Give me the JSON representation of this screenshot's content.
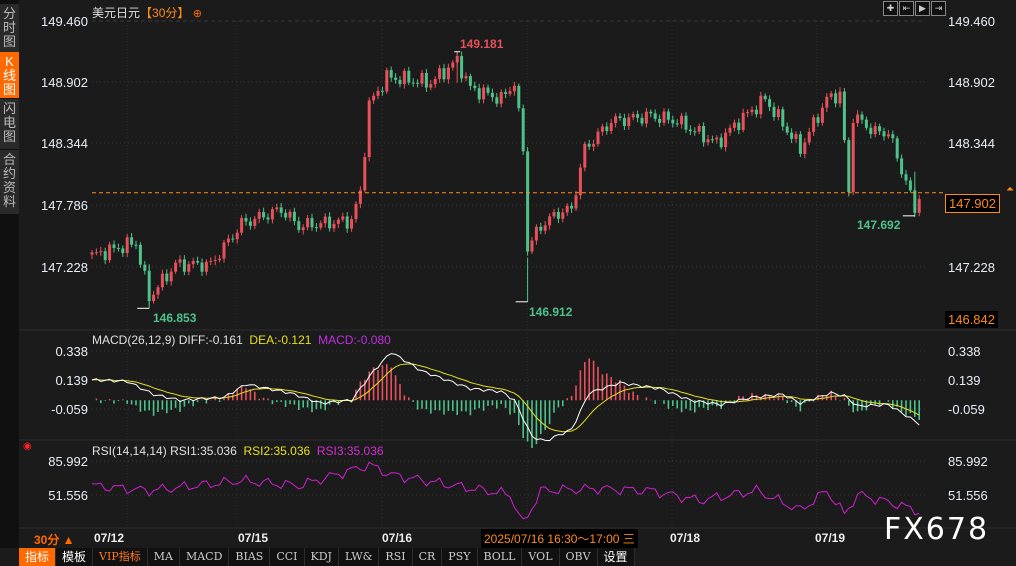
{
  "sidebar": {
    "tabs": [
      {
        "label": "分时图",
        "active": false
      },
      {
        "label": "K线图",
        "active": true
      },
      {
        "label": "闪电图",
        "active": false
      },
      {
        "label": "合约资料",
        "active": false
      }
    ]
  },
  "header": {
    "symbol": "美元日元",
    "period": "【30分】",
    "crosshair_icon": "crosshair-circle-icon"
  },
  "toolbar_icons": [
    "crosshair-icon",
    "zoom-left-icon",
    "play-icon",
    "zoom-right-icon"
  ],
  "price_axis": {
    "labels": [
      "149.460",
      "148.902",
      "148.344",
      "147.786",
      "147.228"
    ],
    "current": "147.902",
    "bottom": "146.842"
  },
  "annotations": {
    "high": "149.181",
    "low1": "146.853",
    "low2": "146.912",
    "low3": "147.692"
  },
  "colors": {
    "up": "#e8505b",
    "down": "#4ec28a",
    "accent": "#ff6a00",
    "diff": "#ffffff",
    "dea": "#e6e020",
    "macd": "#c030e0"
  },
  "chart_data": [
    {
      "type": "candlestick",
      "title": "美元日元【30分】",
      "ylim": [
        146.842,
        149.46
      ],
      "current_price": 147.902,
      "close_keypoints": [
        [
          0,
          147.33
        ],
        [
          10,
          147.45
        ],
        [
          13,
          146.95
        ],
        [
          19,
          147.25
        ],
        [
          27,
          147.25
        ],
        [
          34,
          147.62
        ],
        [
          43,
          147.75
        ],
        [
          47,
          147.6
        ],
        [
          59,
          147.65
        ],
        [
          61,
          147.9
        ],
        [
          63,
          148.7
        ],
        [
          67,
          148.95
        ],
        [
          77,
          148.9
        ],
        [
          83,
          149.1
        ],
        [
          86,
          148.85
        ],
        [
          93,
          148.75
        ],
        [
          96,
          148.9
        ],
        [
          98,
          148.3
        ],
        [
          99,
          147.4
        ],
        [
          102,
          147.6
        ],
        [
          106,
          147.72
        ],
        [
          109,
          147.75
        ],
        [
          112,
          148.3
        ],
        [
          118,
          148.55
        ],
        [
          127,
          148.6
        ],
        [
          133,
          148.55
        ],
        [
          142,
          148.35
        ],
        [
          147,
          148.55
        ],
        [
          153,
          148.75
        ],
        [
          161,
          148.3
        ],
        [
          167,
          148.75
        ],
        [
          170,
          148.8
        ],
        [
          172,
          147.9
        ],
        [
          173,
          148.6
        ],
        [
          178,
          148.45
        ],
        [
          181,
          148.45
        ],
        [
          185,
          148.0
        ],
        [
          187,
          147.75
        ],
        [
          188,
          147.88
        ]
      ],
      "x_labels": [
        "07/12",
        "07/15",
        "07/16",
        "07/18",
        "07/19"
      ]
    },
    {
      "type": "line",
      "title": "MACD(26,12,9)",
      "diff_label": "DIFF:-0.161",
      "dea_label": "DEA:-0.121",
      "macd_label": "MACD:-0.080",
      "y_labels": [
        "0.338",
        "0.139",
        "-0.059"
      ],
      "diff_keypoints": [
        [
          0,
          0.14
        ],
        [
          8,
          0.13
        ],
        [
          14,
          0.04
        ],
        [
          20,
          0.0
        ],
        [
          30,
          0.02
        ],
        [
          35,
          0.11
        ],
        [
          45,
          0.05
        ],
        [
          52,
          -0.02
        ],
        [
          59,
          0.0
        ],
        [
          64,
          0.2
        ],
        [
          68,
          0.33
        ],
        [
          75,
          0.2
        ],
        [
          86,
          0.08
        ],
        [
          93,
          0.06
        ],
        [
          96,
          0.0
        ],
        [
          100,
          -0.25
        ],
        [
          103,
          -0.28
        ],
        [
          109,
          -0.2
        ],
        [
          113,
          0.05
        ],
        [
          120,
          0.12
        ],
        [
          129,
          0.08
        ],
        [
          136,
          0.0
        ],
        [
          143,
          -0.03
        ],
        [
          150,
          0.02
        ],
        [
          157,
          0.04
        ],
        [
          161,
          -0.02
        ],
        [
          168,
          0.05
        ],
        [
          171,
          0.03
        ],
        [
          174,
          -0.04
        ],
        [
          181,
          -0.03
        ],
        [
          188,
          -0.161
        ]
      ]
    },
    {
      "type": "line",
      "title": "RSI(14,14,14)",
      "rsi1_label": "RSI1:35.036",
      "rsi2_label": "RSI2:35.036",
      "rsi3_label": "RSI3:35.036",
      "y_labels": [
        "85.992",
        "51.556"
      ],
      "rsi_keypoints": [
        [
          0,
          61
        ],
        [
          13,
          56
        ],
        [
          34,
          66
        ],
        [
          47,
          61
        ],
        [
          63,
          82
        ],
        [
          68,
          72
        ],
        [
          81,
          62
        ],
        [
          95,
          52
        ],
        [
          98,
          22
        ],
        [
          102,
          56
        ],
        [
          115,
          58
        ],
        [
          127,
          56
        ],
        [
          138,
          46
        ],
        [
          151,
          56
        ],
        [
          161,
          36
        ],
        [
          167,
          56
        ],
        [
          171,
          32
        ],
        [
          174,
          52
        ],
        [
          183,
          42
        ],
        [
          188,
          35
        ]
      ]
    }
  ],
  "footer": {
    "period_label": "30分 ▲",
    "dates": [
      "07/12",
      "07/15",
      "07/16",
      "07/18",
      "07/19"
    ],
    "crosshair_time": "2025/07/16 16:30～17:00 三",
    "tabs": [
      "指标",
      "模板",
      "VIP指标",
      "MA",
      "MACD",
      "BIAS",
      "CCI",
      "KDJ",
      "LW&",
      "RSI",
      "CR",
      "PSY",
      "BOLL",
      "VOL",
      "OBV",
      "设置"
    ]
  },
  "watermark": "FX678"
}
